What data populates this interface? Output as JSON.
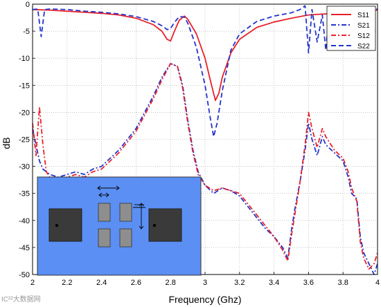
{
  "chart_data": {
    "type": "line",
    "xlabel": "Frequency (Ghz)",
    "ylabel": "dB",
    "xlim": [
      2,
      4
    ],
    "ylim": [
      -50,
      0
    ],
    "x_ticks": [
      2,
      2.2,
      2.4,
      2.6,
      2.8,
      3,
      3.2,
      3.4,
      3.6,
      3.8,
      4
    ],
    "x_tick_labels": [
      "2",
      "2.2",
      "2.4",
      "2.6",
      "2.8",
      "3",
      "3.2",
      "3.4",
      "3.6",
      "3.8",
      "4"
    ],
    "y_ticks": [
      0,
      -5,
      -10,
      -15,
      -20,
      -25,
      -30,
      -35,
      -40,
      -45,
      -50
    ],
    "y_tick_labels": [
      "0",
      "-5",
      "-10",
      "-15",
      "-20",
      "-25",
      "-30",
      "-35",
      "-40",
      "-45",
      "-50"
    ],
    "grid": true,
    "legend_position": "top-right",
    "series": [
      {
        "name": "S11",
        "color": "#e8202a",
        "dash": "solid",
        "x": [
          2.0,
          2.1,
          2.2,
          2.3,
          2.4,
          2.5,
          2.6,
          2.7,
          2.75,
          2.78,
          2.8,
          2.82,
          2.85,
          2.88,
          2.9,
          2.95,
          3.0,
          3.03,
          3.06,
          3.08,
          3.1,
          3.15,
          3.2,
          3.3,
          3.4,
          3.5,
          3.6,
          3.7,
          3.8,
          3.9,
          4.0
        ],
        "y": [
          -1.0,
          -1.1,
          -1.3,
          -1.5,
          -1.7,
          -2.0,
          -2.6,
          -3.8,
          -5.0,
          -6.5,
          -6.8,
          -5.2,
          -3.0,
          -2.2,
          -2.8,
          -5.5,
          -10.0,
          -14.0,
          -17.8,
          -16.5,
          -13.5,
          -9.0,
          -6.5,
          -4.3,
          -3.3,
          -2.6,
          -2.0,
          -1.8,
          -1.5,
          -1.3,
          -1.1
        ]
      },
      {
        "name": "S21",
        "color": "#2233cc",
        "dash": "dashdot",
        "x": [
          2.0,
          2.02,
          2.04,
          2.06,
          2.08,
          2.1,
          2.15,
          2.2,
          2.25,
          2.3,
          2.35,
          2.4,
          2.45,
          2.5,
          2.55,
          2.6,
          2.65,
          2.7,
          2.75,
          2.8,
          2.84,
          2.87,
          2.9,
          2.93,
          2.96,
          3.0,
          3.05,
          3.1,
          3.15,
          3.2,
          3.25,
          3.3,
          3.35,
          3.4,
          3.45,
          3.48,
          3.5,
          3.52,
          3.55,
          3.58,
          3.6,
          3.62,
          3.65,
          3.68,
          3.7,
          3.75,
          3.8,
          3.83,
          3.85,
          3.88,
          3.9,
          3.92,
          3.95,
          3.98,
          4.0
        ],
        "y": [
          -23.0,
          -26.0,
          -29.0,
          -30.5,
          -31.0,
          -31.5,
          -32.0,
          -31.5,
          -31.0,
          -31.5,
          -30.5,
          -30.0,
          -28.5,
          -27.0,
          -25.0,
          -23.0,
          -20.0,
          -17.0,
          -13.5,
          -11.0,
          -11.5,
          -15.0,
          -21.5,
          -27.0,
          -31.0,
          -33.5,
          -35.0,
          -34.0,
          -34.5,
          -35.5,
          -37.5,
          -39.5,
          -41.5,
          -43.0,
          -45.0,
          -47.0,
          -42.0,
          -38.0,
          -33.0,
          -27.0,
          -22.0,
          -25.0,
          -28.0,
          -24.5,
          -26.0,
          -27.5,
          -29.0,
          -32.0,
          -35.0,
          -36.0,
          -43.0,
          -46.0,
          -48.0,
          -50.0,
          -48.0
        ]
      },
      {
        "name": "S12",
        "color": "#e8202a",
        "dash": "dashdot",
        "x": [
          2.0,
          2.02,
          2.04,
          2.06,
          2.08,
          2.1,
          2.15,
          2.2,
          2.25,
          2.3,
          2.35,
          2.4,
          2.45,
          2.5,
          2.55,
          2.6,
          2.65,
          2.7,
          2.75,
          2.8,
          2.84,
          2.87,
          2.9,
          2.93,
          2.96,
          3.0,
          3.05,
          3.1,
          3.15,
          3.2,
          3.25,
          3.3,
          3.35,
          3.4,
          3.45,
          3.48,
          3.5,
          3.52,
          3.55,
          3.58,
          3.6,
          3.62,
          3.65,
          3.68,
          3.7,
          3.75,
          3.8,
          3.83,
          3.85,
          3.88,
          3.9,
          3.92,
          3.95,
          3.98,
          4.0
        ],
        "y": [
          -22.0,
          -28.0,
          -19.0,
          -26.0,
          -31.0,
          -32.0,
          -32.5,
          -32.0,
          -31.5,
          -32.0,
          -31.0,
          -30.5,
          -29.0,
          -27.5,
          -25.5,
          -23.5,
          -20.5,
          -17.5,
          -14.0,
          -11.0,
          -11.5,
          -15.5,
          -22.0,
          -27.5,
          -31.5,
          -33.5,
          -34.5,
          -34.0,
          -34.5,
          -35.0,
          -37.0,
          -39.0,
          -41.0,
          -43.0,
          -45.5,
          -47.5,
          -43.0,
          -39.0,
          -33.0,
          -26.0,
          -20.0,
          -23.0,
          -26.5,
          -23.0,
          -24.5,
          -27.0,
          -28.5,
          -31.0,
          -34.0,
          -36.5,
          -44.0,
          -47.0,
          -49.0,
          -48.0,
          -46.0
        ]
      },
      {
        "name": "S22",
        "color": "#2233cc",
        "dash": "dashed",
        "x": [
          2.0,
          2.03,
          2.05,
          2.07,
          2.1,
          2.2,
          2.3,
          2.4,
          2.5,
          2.6,
          2.7,
          2.75,
          2.78,
          2.8,
          2.82,
          2.85,
          2.88,
          2.9,
          2.95,
          3.0,
          3.03,
          3.05,
          3.07,
          3.1,
          3.15,
          3.2,
          3.3,
          3.4,
          3.5,
          3.55,
          3.58,
          3.6,
          3.62,
          3.65,
          3.68,
          3.7,
          3.72,
          3.75,
          3.8,
          3.9,
          4.0
        ],
        "y": [
          -1.0,
          -0.9,
          -6.0,
          -1.0,
          -0.9,
          -1.0,
          -1.3,
          -1.5,
          -1.8,
          -2.3,
          -3.2,
          -4.0,
          -4.7,
          -4.5,
          -3.5,
          -2.3,
          -2.4,
          -3.5,
          -8.0,
          -15.0,
          -21.0,
          -24.5,
          -22.0,
          -16.0,
          -8.5,
          -5.5,
          -3.2,
          -2.2,
          -1.6,
          -1.0,
          -0.3,
          -9.0,
          -1.0,
          -7.0,
          -2.0,
          -8.5,
          -1.5,
          -1.5,
          -1.2,
          -1.0,
          -0.9
        ]
      }
    ]
  },
  "legend": {
    "entries": [
      "S11",
      "S21",
      "S12",
      "S22"
    ]
  },
  "inset": {
    "background": "#5b8ff4",
    "pad_color": "#3a3a3a",
    "small_pad_color": "#8e8e8e"
  },
  "watermark": {
    "text": "IC²²大数据网"
  }
}
